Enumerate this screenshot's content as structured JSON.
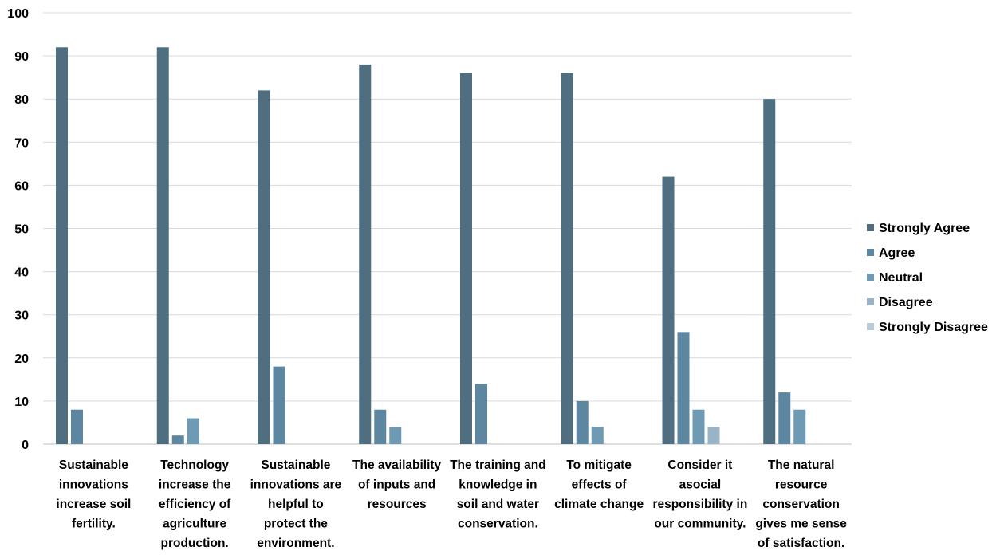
{
  "chart_data": {
    "type": "bar",
    "title": "",
    "xlabel": "",
    "ylabel": "",
    "ylim": [
      0,
      100
    ],
    "yticks": [
      0,
      10,
      20,
      30,
      40,
      50,
      60,
      70,
      80,
      90,
      100
    ],
    "grid": true,
    "legend_position": "right",
    "categories": [
      [
        "Sustainable",
        "innovations",
        "increase soil",
        "fertility."
      ],
      [
        "Technology",
        "increase the",
        "efficiency of",
        "agriculture",
        "production."
      ],
      [
        "Sustainable",
        "innovations are",
        "helpful to",
        "protect the",
        "environment."
      ],
      [
        "The availability",
        "of inputs and",
        "resources"
      ],
      [
        "The training and",
        "knowledge in",
        "soil and water",
        "conservation."
      ],
      [
        "To mitigate",
        "effects of",
        "climate change"
      ],
      [
        "Consider it",
        "asocial",
        "responsibility in",
        "our community."
      ],
      [
        "The natural",
        "resource",
        "conservation",
        "gives me sense",
        "of satisfaction."
      ]
    ],
    "series": [
      {
        "name": "Strongly Agree",
        "color": "#4f6e80",
        "values": [
          92,
          92,
          82,
          88,
          86,
          86,
          62,
          80
        ]
      },
      {
        "name": "Agree",
        "color": "#5d87a0",
        "values": [
          8,
          2,
          18,
          8,
          14,
          10,
          26,
          12
        ]
      },
      {
        "name": "Neutral",
        "color": "#6f9ab3",
        "values": [
          0,
          6,
          0,
          4,
          0,
          4,
          8,
          8
        ]
      },
      {
        "name": "Disagree",
        "color": "#98b4c6",
        "values": [
          0,
          0,
          0,
          0,
          0,
          0,
          4,
          0
        ]
      },
      {
        "name": "Strongly Disagree",
        "color": "#b9cbd6",
        "values": [
          0,
          0,
          0,
          0,
          0,
          0,
          0,
          0
        ]
      }
    ]
  }
}
